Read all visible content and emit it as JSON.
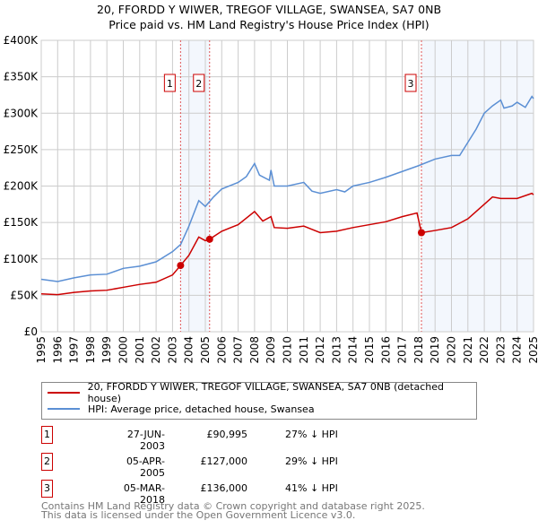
{
  "title": "20, FFORDD Y WIWER, TREGOF VILLAGE, SWANSEA, SA7 0NB",
  "subtitle": "Price paid vs. HM Land Registry's House Price Index (HPI)",
  "chart_data": {
    "type": "line",
    "ylim": [
      0,
      400000
    ],
    "xlim": [
      1995,
      2025
    ],
    "yticks": [
      0,
      50000,
      100000,
      150000,
      200000,
      250000,
      300000,
      350000,
      400000
    ],
    "ytick_labels": [
      "£0",
      "£50K",
      "£100K",
      "£150K",
      "£200K",
      "£250K",
      "£300K",
      "£350K",
      "£400K"
    ],
    "xtick_labels": [
      "1995",
      "1996",
      "1997",
      "1998",
      "1999",
      "2000",
      "2001",
      "2002",
      "2003",
      "2004",
      "2005",
      "2006",
      "2007",
      "2008",
      "2009",
      "2010",
      "2011",
      "2012",
      "2013",
      "2014",
      "2015",
      "2016",
      "2017",
      "2018",
      "2019",
      "2020",
      "2021",
      "2022",
      "2023",
      "2024",
      "2025"
    ],
    "grid": true,
    "series": [
      {
        "name": "20, FFORDD Y WIWER, TREGOF VILLAGE, SWANSEA, SA7 0NB (detached house)",
        "color": "#cc0000",
        "x": [
          1995,
          1996,
          1997,
          1998,
          1999,
          2000,
          2001,
          2002,
          2003,
          2003.49,
          2004,
          2004.6,
          2005,
          2005.26,
          2006,
          2007,
          2008,
          2008.5,
          2009,
          2009.2,
          2010,
          2011,
          2012,
          2013,
          2014,
          2015,
          2016,
          2017,
          2017.9,
          2018.17,
          2019,
          2020,
          2021,
          2021.5,
          2022,
          2022.5,
          2023,
          2024,
          2024.9,
          2025
        ],
        "y": [
          52,
          51,
          54,
          56,
          57,
          61,
          65,
          68,
          78,
          91,
          105,
          130,
          125,
          127,
          138,
          147,
          165,
          152,
          158,
          143,
          142,
          145,
          136,
          138,
          143,
          147,
          151,
          158,
          163,
          136,
          139,
          143,
          155,
          165,
          175,
          185,
          183,
          183,
          190,
          188
        ]
      },
      {
        "name": "HPI: Average price, detached house, Swansea",
        "color": "#5b8fd4",
        "x": [
          1995,
          1996,
          1997,
          1998,
          1999,
          2000,
          2001,
          2002,
          2003,
          2003.5,
          2004,
          2004.6,
          2005,
          2005.5,
          2006,
          2007,
          2007.5,
          2008,
          2008.3,
          2008.9,
          2009,
          2009.2,
          2010,
          2011,
          2011.5,
          2012,
          2013,
          2013.5,
          2014,
          2015,
          2016,
          2017,
          2018,
          2019,
          2020,
          2020.5,
          2021,
          2021.5,
          2022,
          2022.5,
          2023,
          2023.2,
          2023.7,
          2024,
          2024.5,
          2024.9,
          2025
        ],
        "y": [
          72,
          69,
          74,
          78,
          79,
          87,
          90,
          96,
          110,
          120,
          145,
          180,
          172,
          185,
          196,
          205,
          213,
          231,
          215,
          208,
          222,
          200,
          200,
          205,
          193,
          190,
          195,
          192,
          200,
          205,
          212,
          220,
          228,
          237,
          242,
          242,
          260,
          278,
          300,
          310,
          318,
          307,
          310,
          315,
          308,
          323,
          320
        ]
      }
    ],
    "y_units": "thousands GBP",
    "sales": [
      {
        "label": "1",
        "x": 2003.49,
        "y": 90995,
        "date": "27-JUN-2003",
        "price": "£90,995",
        "hpi": "27% ↓ HPI"
      },
      {
        "label": "2",
        "x": 2005.26,
        "y": 127000,
        "date": "05-APR-2005",
        "price": "£127,000",
        "hpi": "29% ↓ HPI"
      },
      {
        "label": "3",
        "x": 2018.17,
        "y": 136000,
        "date": "05-MAR-2018",
        "price": "£136,000",
        "hpi": "41% ↓ HPI"
      }
    ],
    "legend_placement": "below"
  },
  "footer": [
    "Contains HM Land Registry data © Crown copyright and database right 2025.",
    "This data is licensed under the Open Government Licence v3.0."
  ]
}
